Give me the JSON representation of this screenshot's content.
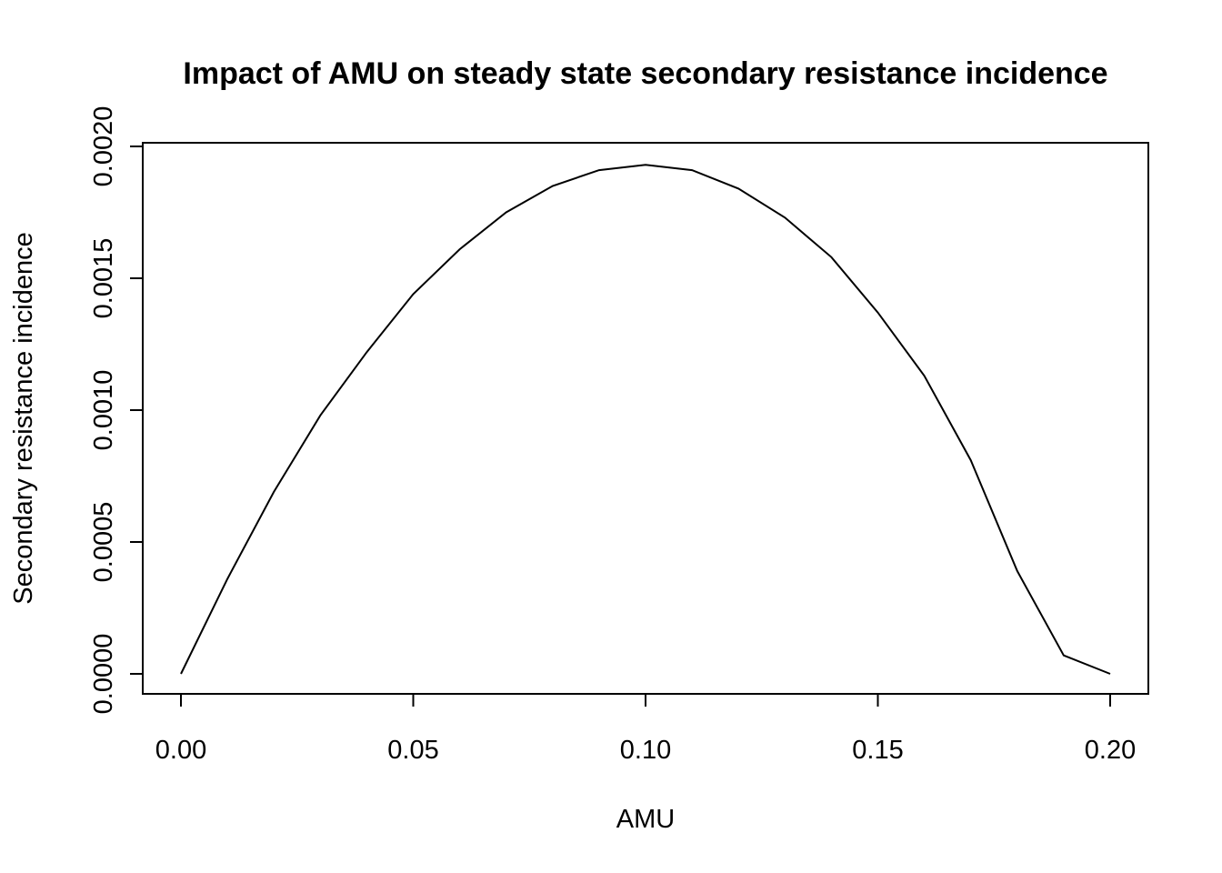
{
  "chart_data": {
    "type": "line",
    "title": "Impact of AMU on steady state secondary resistance incidence",
    "xlabel": "AMU",
    "ylabel": "Secondary resistance incidence",
    "xlim": [
      0.0,
      0.2
    ],
    "ylim": [
      0.0,
      0.002
    ],
    "x_ticks": [
      "0.00",
      "0.05",
      "0.10",
      "0.15",
      "0.20"
    ],
    "y_ticks": [
      "0.0000",
      "0.0005",
      "0.0010",
      "0.0015",
      "0.0020"
    ],
    "grid": false,
    "series": [
      {
        "x": [
          0.0,
          0.01,
          0.02,
          0.03,
          0.04,
          0.05,
          0.06,
          0.07,
          0.08,
          0.09,
          0.1,
          0.11,
          0.12,
          0.13,
          0.14,
          0.15,
          0.16,
          0.17,
          0.18,
          0.19,
          0.2
        ],
        "values": [
          0.0,
          0.00036,
          0.00069,
          0.00098,
          0.00122,
          0.00144,
          0.00161,
          0.00175,
          0.00185,
          0.00191,
          0.00193,
          0.00191,
          0.00184,
          0.00173,
          0.00158,
          0.00137,
          0.00113,
          0.00081,
          0.00039,
          7e-05,
          0.0
        ]
      }
    ]
  }
}
